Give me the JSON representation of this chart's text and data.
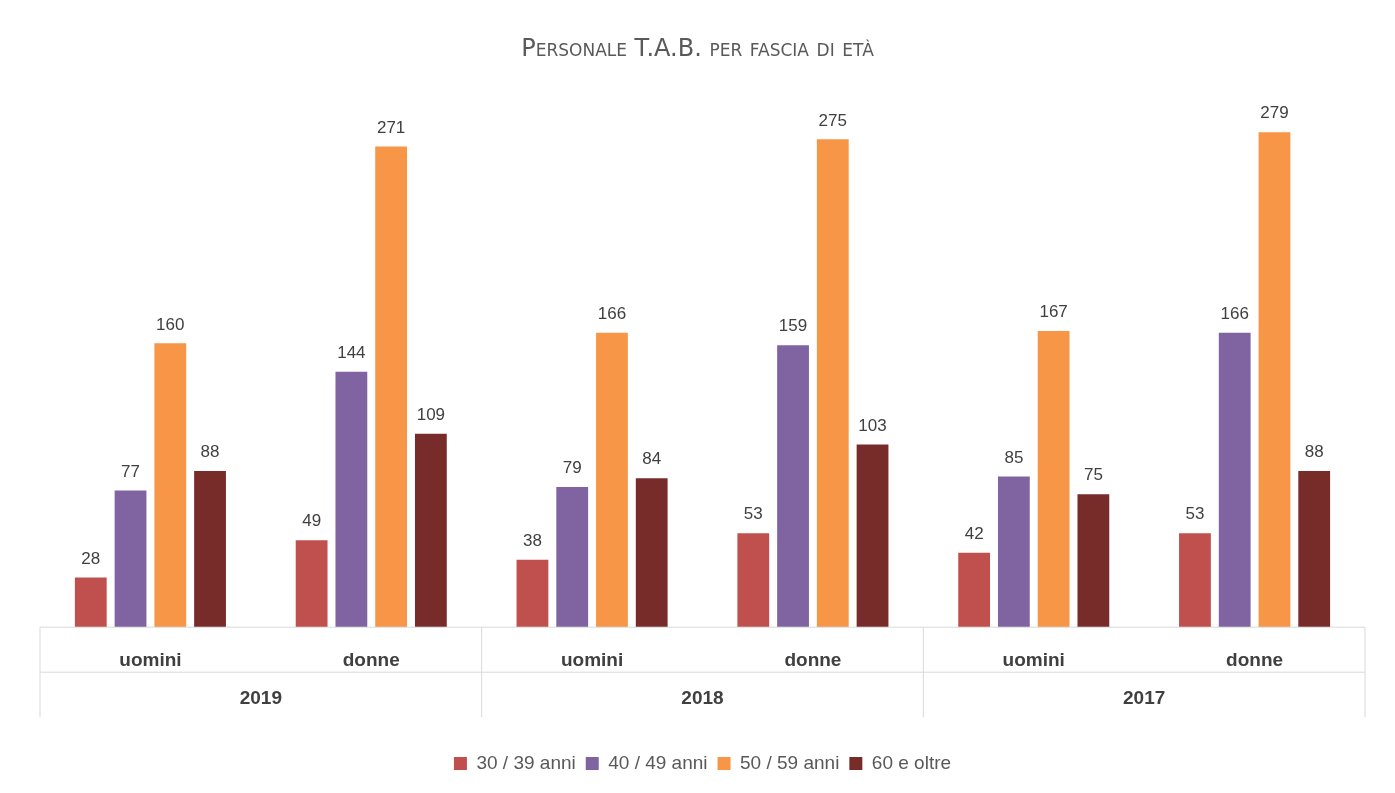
{
  "chart_data": {
    "type": "bar",
    "title": "Personale T.A.B. per fascia di età",
    "categories": [
      "uomini",
      "donne",
      "uomini",
      "donne",
      "uomini",
      "donne"
    ],
    "series": [
      {
        "name": "30 / 39 anni",
        "color": "#c0504d",
        "values": [
          28,
          49,
          38,
          53,
          42,
          53
        ]
      },
      {
        "name": "40 / 49 anni",
        "color": "#8064a2",
        "values": [
          77,
          144,
          79,
          159,
          85,
          166
        ]
      },
      {
        "name": "50 / 59 anni",
        "color": "#f79646",
        "values": [
          160,
          271,
          166,
          275,
          167,
          279
        ]
      },
      {
        "name": "60 e oltre",
        "color": "#772c2a",
        "values": [
          88,
          109,
          84,
          103,
          75,
          88
        ]
      }
    ],
    "annotations": [
      "2019",
      "2018",
      "2017"
    ],
    "data_labels": true,
    "legend": "bottom",
    "grid": false
  }
}
